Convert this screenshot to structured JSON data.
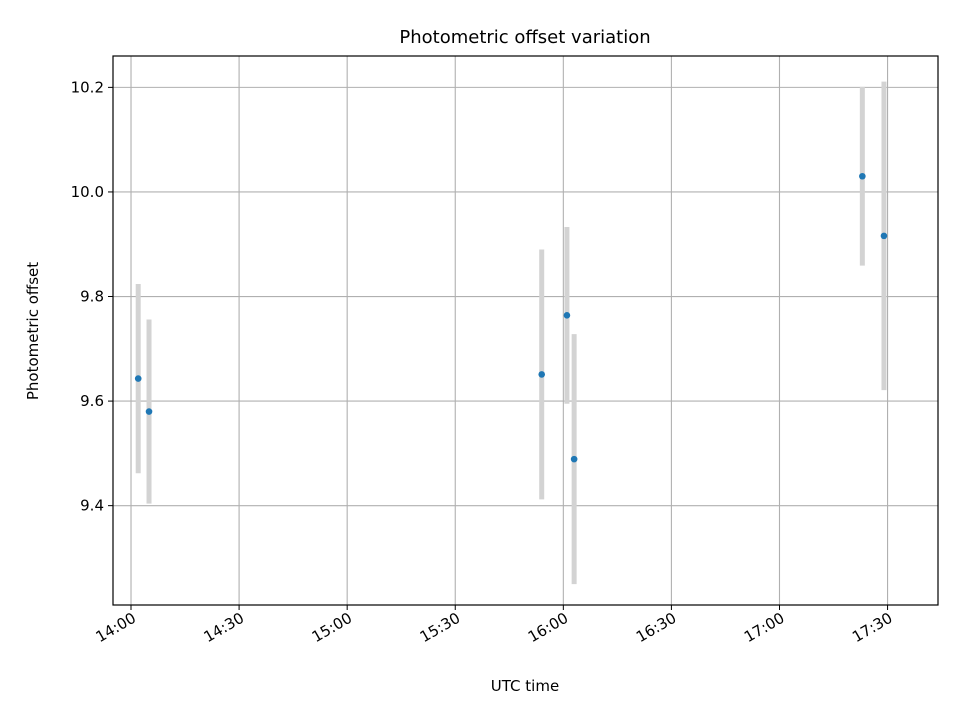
{
  "chart_data": {
    "type": "scatter",
    "title": "Photometric offset variation",
    "xlabel": "UTC time",
    "ylabel": "Photometric offset",
    "x_ticks": [
      "14:00",
      "14:30",
      "15:00",
      "15:30",
      "16:00",
      "16:30",
      "17:00",
      "17:30"
    ],
    "y_ticks": [
      "9.4",
      "9.6",
      "9.8",
      "10.0",
      "10.2"
    ],
    "xlim": [
      "13:55",
      "17:44"
    ],
    "ylim": [
      9.21,
      10.26
    ],
    "grid": true,
    "colors": {
      "points": "#1f77b4",
      "errorbars": "#d3d3d3",
      "grid": "#b0b0b0"
    },
    "points": [
      {
        "x": "14:02",
        "y": 9.643,
        "yerr": 0.181
      },
      {
        "x": "14:05",
        "y": 9.58,
        "yerr": 0.176
      },
      {
        "x": "15:54",
        "y": 9.651,
        "yerr": 0.239
      },
      {
        "x": "16:01",
        "y": 9.764,
        "yerr": 0.169
      },
      {
        "x": "16:03",
        "y": 9.489,
        "yerr": 0.239
      },
      {
        "x": "17:23",
        "y": 10.03,
        "yerr": 0.171
      },
      {
        "x": "17:29",
        "y": 9.916,
        "yerr": 0.295
      }
    ]
  }
}
